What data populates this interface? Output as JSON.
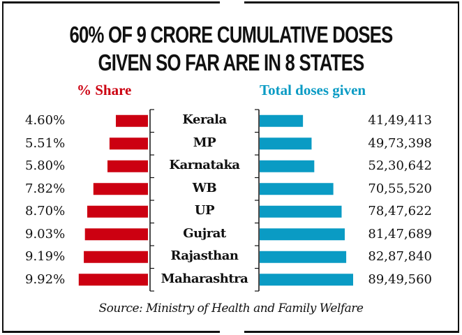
{
  "title_lines": [
    "60% OF 9 CRORE CUMULATIVE DOSES",
    "GIVEN SO FAR ARE IN 8 STATES"
  ],
  "colors": {
    "share": "#cc0011",
    "doses": "#0a9bc4",
    "text": "#111111"
  },
  "source": "Source: Ministry of Health and Family Welfare",
  "chart_data": {
    "type": "bar",
    "title": "60% OF 9 CRORE CUMULATIVE DOSES GIVEN SO FAR ARE IN 8 STATES",
    "categories": [
      "Kerala",
      "MP",
      "Karnataka",
      "WB",
      "UP",
      "Gujrat",
      "Rajasthan",
      "Maharashtra"
    ],
    "series": [
      {
        "name": "% Share",
        "direction": "left",
        "values": [
          4.6,
          5.51,
          5.8,
          7.82,
          8.7,
          9.03,
          9.19,
          9.92
        ],
        "labels": [
          "4.60%",
          "5.51%",
          "5.80%",
          "7.82%",
          "8.70%",
          "9.03%",
          "9.19%",
          "9.92%"
        ]
      },
      {
        "name": "Total doses given",
        "direction": "right",
        "values": [
          4149413,
          4973398,
          5230642,
          7055520,
          7847622,
          8147689,
          8287840,
          8949560
        ],
        "labels": [
          "41,49,413",
          "49,73,398",
          "52,30,642",
          "70,55,520",
          "78,47,622",
          "81,47,689",
          "82,87,840",
          "89,49,560"
        ]
      }
    ],
    "xlabel": "",
    "ylabel": "",
    "grid": false,
    "legend": "none"
  }
}
